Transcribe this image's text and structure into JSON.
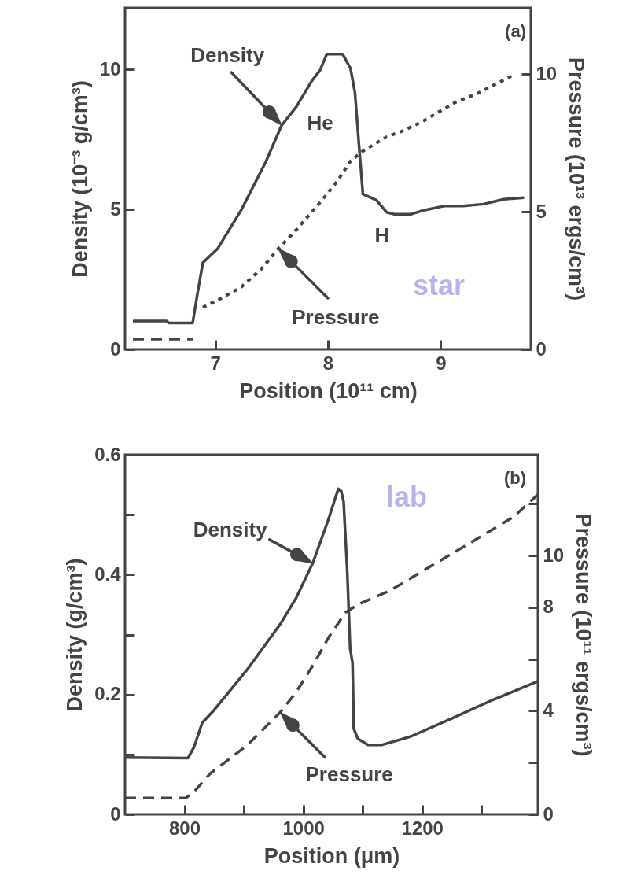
{
  "chart_data": [
    {
      "type": "line",
      "xlabel": "Position (10¹¹ cm)",
      "ylabel": "Density (10⁻³ g/cm³)",
      "y2label": "Pressure (10¹³ ergs/cm³)",
      "xlim": [
        6.2,
        9.8
      ],
      "xticks": [
        7,
        8,
        9
      ],
      "ylim": [
        0,
        12.2
      ],
      "yticks": [
        0,
        5,
        10
      ],
      "y2lim": [
        0,
        12.4
      ],
      "y2ticks": [
        0,
        5,
        10
      ],
      "annotations": [
        "(a)",
        "He",
        "H",
        "star"
      ],
      "series": [
        {
          "name": "Density",
          "color": "#444444",
          "line_style": "solid",
          "x": [
            6.27,
            6.57,
            6.59,
            6.8,
            6.84,
            6.89,
            7.02,
            7.23,
            7.45,
            7.59,
            7.72,
            7.86,
            7.93,
            7.99,
            8.13,
            8.2,
            8.24,
            8.27,
            8.31,
            8.43,
            8.52,
            8.59,
            8.74,
            8.85,
            9.03,
            9.2,
            9.38,
            9.56,
            9.74
          ],
          "values": [
            1.01,
            1.01,
            0.94,
            0.94,
            1.93,
            3.09,
            3.59,
            4.97,
            6.71,
            8.01,
            8.67,
            9.61,
            9.97,
            10.55,
            10.55,
            10.04,
            9.17,
            7.58,
            5.55,
            5.33,
            4.9,
            4.83,
            4.83,
            4.97,
            5.12,
            5.12,
            5.19,
            5.36,
            5.42
          ]
        },
        {
          "color": "#444444",
          "line_style": "dashed",
          "axis": "y2",
          "x": [
            6.27,
            6.8
          ],
          "values": [
            0.37,
            0.37
          ]
        },
        {
          "name": "Pressure",
          "color": "#444444",
          "line_style": "dotted",
          "axis": "y2",
          "x": [
            6.89,
            7.07,
            7.23,
            7.41,
            7.56,
            7.7,
            7.84,
            7.95,
            8.08,
            8.2,
            8.31,
            8.52,
            8.67,
            8.85,
            9.13,
            9.31,
            9.63
          ],
          "values": [
            1.52,
            1.89,
            2.26,
            2.92,
            3.66,
            4.25,
            4.91,
            5.43,
            6.09,
            6.83,
            7.2,
            7.71,
            7.94,
            8.3,
            8.97,
            9.26,
            9.93
          ]
        }
      ]
    },
    {
      "type": "line",
      "xlabel": "Position (μm)",
      "ylabel": "Density (g/cm³)",
      "y2label": "Pressure (10¹¹ ergs/cm³)",
      "xlim": [
        700,
        1395
      ],
      "xticks": [
        800,
        {
          "value": 900,
          "label": null
        },
        1000,
        {
          "value": 1100,
          "label": null
        },
        1200,
        {
          "value": 1300,
          "label": null
        }
      ],
      "ylim": [
        0,
        0.6
      ],
      "yticks": [
        0,
        {
          "value": 0.1,
          "label": null
        },
        0.2,
        {
          "value": 0.3,
          "label": null
        },
        0.4,
        {
          "value": 0.5,
          "label": null
        },
        0.6
      ],
      "y2lim": [
        0,
        13.9
      ],
      "y2ticks": [
        0,
        {
          "value": 2,
          "label": null
        },
        4,
        {
          "value": 6,
          "label": null
        },
        8,
        10,
        {
          "value": 12,
          "label": null
        }
      ],
      "annotations": [
        "(b)",
        "lab"
      ],
      "series": [
        {
          "name": "Density",
          "color": "#444444",
          "line_style": "solid",
          "x": [
            700,
            806,
            816,
            830,
            850,
            906,
            961,
            988,
            1016,
            1043,
            1054,
            1059,
            1064,
            1068,
            1074,
            1079,
            1083,
            1085,
            1092,
            1109,
            1133,
            1181,
            1250,
            1319,
            1395
          ],
          "values": [
            0.095,
            0.094,
            0.112,
            0.153,
            0.174,
            0.242,
            0.317,
            0.361,
            0.419,
            0.494,
            0.528,
            0.543,
            0.539,
            0.521,
            0.406,
            0.276,
            0.252,
            0.143,
            0.126,
            0.116,
            0.116,
            0.13,
            0.16,
            0.191,
            0.222
          ]
        },
        {
          "name": "Pressure",
          "color": "#444444",
          "line_style": "dashed",
          "axis": "y2",
          "x": [
            700,
            802,
            816,
            843,
            906,
            961,
            988,
            1016,
            1043,
            1071,
            1092,
            1147,
            1216,
            1285,
            1354,
            1395
          ],
          "values": [
            0.63,
            0.63,
            0.87,
            1.57,
            2.68,
            3.94,
            4.72,
            5.75,
            6.85,
            7.8,
            8.11,
            8.66,
            9.61,
            10.55,
            11.5,
            12.36
          ]
        }
      ]
    }
  ]
}
